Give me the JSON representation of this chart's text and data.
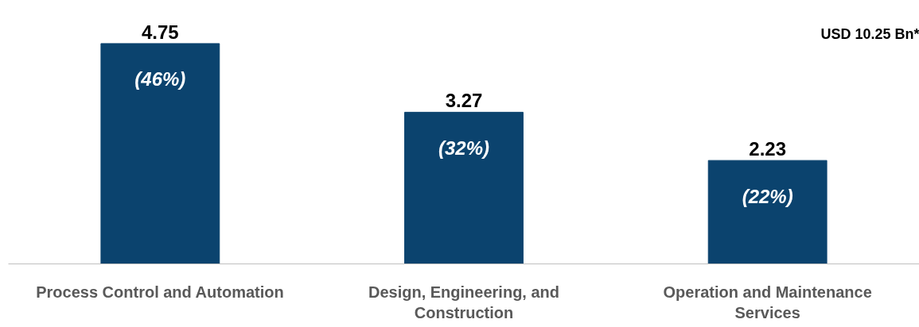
{
  "chart_data": {
    "type": "bar",
    "categories": [
      "Process Control and Automation",
      "Design, Engineering, and Construction",
      "Operation and Maintenance Services"
    ],
    "values": [
      4.75,
      3.27,
      2.23
    ],
    "color": "#0b436e",
    "data_labels": true,
    "grid": false,
    "annotations": [
      "(46%)",
      "(32%)",
      "(22%)",
      "USD 10.25 Bn*"
    ]
  }
}
